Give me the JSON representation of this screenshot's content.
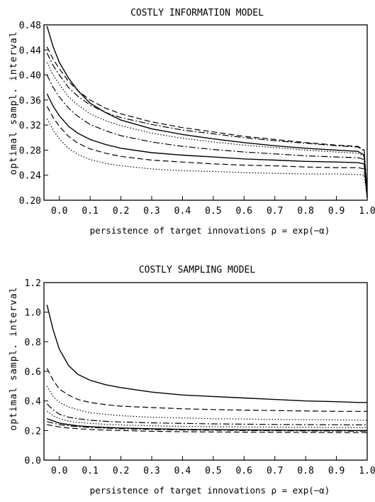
{
  "chart_data": [
    {
      "type": "line",
      "title": "COSTLY INFORMATION MODEL",
      "xlabel": "persistence of target innovations ρ = exp(−α)",
      "ylabel": "optimal sampl. interval",
      "xlim": [
        -0.05,
        1.0
      ],
      "ylim": [
        0.2,
        0.48
      ],
      "xticks": [
        "0.0",
        "0.1",
        "0.2",
        "0.3",
        "0.4",
        "0.5",
        "0.6",
        "0.7",
        "0.8",
        "0.9",
        "1.0"
      ],
      "yticks": [
        "0.20",
        "0.24",
        "0.28",
        "0.32",
        "0.36",
        "0.40",
        "0.44",
        "0.48"
      ],
      "grid": false,
      "x": [
        -0.04,
        -0.02,
        0.0,
        0.03,
        0.06,
        0.1,
        0.15,
        0.2,
        0.3,
        0.4,
        0.5,
        0.6,
        0.7,
        0.8,
        0.9,
        0.97,
        0.99,
        1.0
      ],
      "series": [
        {
          "style": "solid",
          "values": [
            0.478,
            0.445,
            0.42,
            0.395,
            0.375,
            0.355,
            0.34,
            0.328,
            0.314,
            0.305,
            0.298,
            0.292,
            0.287,
            0.283,
            0.28,
            0.278,
            0.272,
            0.205
          ]
        },
        {
          "style": "dashed",
          "values": [
            0.445,
            0.425,
            0.41,
            0.39,
            0.375,
            0.36,
            0.347,
            0.338,
            0.325,
            0.316,
            0.309,
            0.302,
            0.297,
            0.292,
            0.288,
            0.286,
            0.28,
            0.21
          ]
        },
        {
          "style": "dashdot",
          "values": [
            0.435,
            0.415,
            0.4,
            0.38,
            0.366,
            0.352,
            0.34,
            0.332,
            0.321,
            0.312,
            0.306,
            0.3,
            0.295,
            0.291,
            0.287,
            0.285,
            0.279,
            0.212
          ]
        },
        {
          "style": "dotted",
          "values": [
            0.42,
            0.4,
            0.385,
            0.365,
            0.352,
            0.338,
            0.327,
            0.319,
            0.307,
            0.299,
            0.293,
            0.288,
            0.284,
            0.28,
            0.277,
            0.275,
            0.27,
            0.208
          ]
        },
        {
          "style": "dashdot",
          "values": [
            0.4,
            0.38,
            0.365,
            0.347,
            0.334,
            0.321,
            0.311,
            0.303,
            0.293,
            0.286,
            0.281,
            0.277,
            0.274,
            0.271,
            0.269,
            0.268,
            0.265,
            0.208
          ]
        },
        {
          "style": "solid",
          "values": [
            0.37,
            0.35,
            0.335,
            0.318,
            0.307,
            0.297,
            0.289,
            0.283,
            0.276,
            0.272,
            0.269,
            0.266,
            0.264,
            0.262,
            0.261,
            0.26,
            0.258,
            0.205
          ]
        },
        {
          "style": "dashed",
          "values": [
            0.35,
            0.332,
            0.318,
            0.302,
            0.291,
            0.282,
            0.275,
            0.27,
            0.264,
            0.261,
            0.258,
            0.256,
            0.255,
            0.253,
            0.252,
            0.252,
            0.25,
            0.205
          ]
        },
        {
          "style": "dotted",
          "values": [
            0.33,
            0.312,
            0.298,
            0.283,
            0.273,
            0.265,
            0.259,
            0.255,
            0.25,
            0.247,
            0.246,
            0.244,
            0.243,
            0.242,
            0.242,
            0.241,
            0.24,
            0.203
          ]
        }
      ]
    },
    {
      "type": "line",
      "title": "COSTLY SAMPLING MODEL",
      "xlabel": "persistence of target innovations ρ = exp(−α)",
      "ylabel": "optimal sampl. interval",
      "xlim": [
        -0.05,
        1.0
      ],
      "ylim": [
        0.0,
        1.2
      ],
      "xticks": [
        "0.0",
        "0.1",
        "0.2",
        "0.3",
        "0.4",
        "0.5",
        "0.6",
        "0.7",
        "0.8",
        "0.9",
        "1.0"
      ],
      "yticks": [
        "0.0",
        "0.2",
        "0.4",
        "0.6",
        "0.8",
        "1.0",
        "1.2"
      ],
      "grid": false,
      "x": [
        -0.04,
        -0.02,
        0.0,
        0.03,
        0.06,
        0.1,
        0.15,
        0.2,
        0.3,
        0.4,
        0.5,
        0.6,
        0.7,
        0.8,
        0.9,
        0.97,
        1.0
      ],
      "series": [
        {
          "style": "solid",
          "values": [
            1.05,
            0.88,
            0.75,
            0.64,
            0.58,
            0.54,
            0.51,
            0.49,
            0.46,
            0.44,
            0.43,
            0.42,
            0.41,
            0.4,
            0.395,
            0.39,
            0.39
          ]
        },
        {
          "style": "dashed",
          "values": [
            0.62,
            0.54,
            0.48,
            0.44,
            0.41,
            0.39,
            0.375,
            0.365,
            0.355,
            0.347,
            0.342,
            0.338,
            0.335,
            0.332,
            0.33,
            0.33,
            0.33
          ]
        },
        {
          "style": "dotted",
          "values": [
            0.5,
            0.43,
            0.39,
            0.36,
            0.34,
            0.32,
            0.31,
            0.3,
            0.29,
            0.285,
            0.28,
            0.278,
            0.275,
            0.273,
            0.272,
            0.27,
            0.27
          ]
        },
        {
          "style": "dashdot",
          "values": [
            0.38,
            0.34,
            0.31,
            0.29,
            0.28,
            0.27,
            0.262,
            0.258,
            0.252,
            0.248,
            0.245,
            0.243,
            0.241,
            0.24,
            0.239,
            0.238,
            0.238
          ]
        },
        {
          "style": "dotted",
          "values": [
            0.33,
            0.3,
            0.28,
            0.265,
            0.255,
            0.248,
            0.242,
            0.238,
            0.232,
            0.228,
            0.226,
            0.224,
            0.223,
            0.222,
            0.221,
            0.22,
            0.22
          ]
        },
        {
          "style": "solid",
          "values": [
            0.28,
            0.265,
            0.25,
            0.24,
            0.232,
            0.226,
            0.221,
            0.217,
            0.212,
            0.208,
            0.206,
            0.204,
            0.203,
            0.202,
            0.201,
            0.2,
            0.2
          ]
        },
        {
          "style": "dashdot",
          "values": [
            0.26,
            0.25,
            0.24,
            0.232,
            0.226,
            0.221,
            0.216,
            0.212,
            0.207,
            0.204,
            0.202,
            0.2,
            0.199,
            0.198,
            0.197,
            0.196,
            0.196
          ]
        },
        {
          "style": "dashed",
          "values": [
            0.24,
            0.232,
            0.224,
            0.217,
            0.212,
            0.207,
            0.203,
            0.2,
            0.195,
            0.192,
            0.19,
            0.189,
            0.188,
            0.187,
            0.186,
            0.186,
            0.186
          ]
        }
      ]
    }
  ]
}
